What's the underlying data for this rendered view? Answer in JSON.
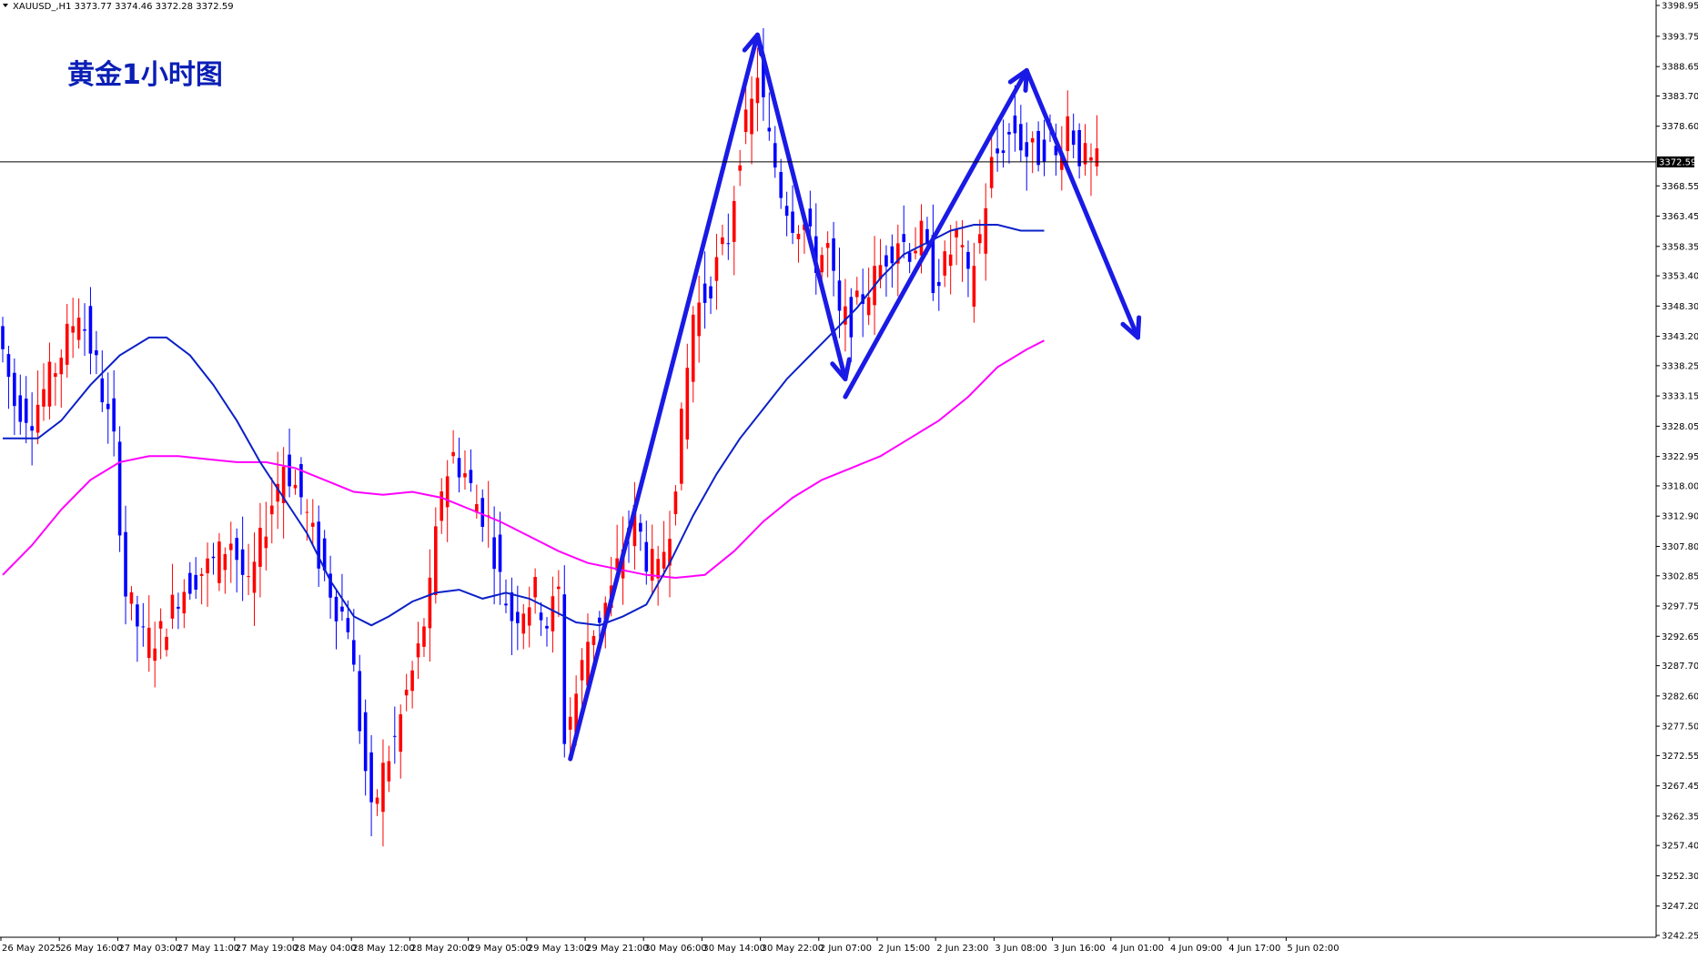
{
  "header": {
    "symbol_line": "XAUUSD_,H1  3373.77 3374.46 3372.28 3372.59",
    "chart_title": "黄金1小时图"
  },
  "colors": {
    "bull_candle": "#ff0000",
    "bear_candle": "#0000ff",
    "ma_fast": "#0b20c8",
    "ma_slow": "#ff00ff",
    "arrows": "#1a1ae6",
    "price_line": "#000000",
    "price_tag_bg": "#000000"
  },
  "chart_data": {
    "type": "candlestick",
    "timeframe": "H1",
    "ylim": [
      3242.25,
      3398.95
    ],
    "y_ticks": [
      "3398.95",
      "3393.75",
      "3388.65",
      "3383.70",
      "3378.60",
      "3368.55",
      "3363.45",
      "3358.35",
      "3353.40",
      "3348.30",
      "3343.20",
      "3338.25",
      "3333.15",
      "3328.05",
      "3322.95",
      "3318.00",
      "3312.90",
      "3307.80",
      "3302.85",
      "3297.75",
      "3292.65",
      "3287.70",
      "3282.60",
      "3277.50",
      "3272.55",
      "3267.45",
      "3262.35",
      "3257.40",
      "3252.30",
      "3247.20",
      "3242.25"
    ],
    "x_ticks": [
      "26 May 2025",
      "26 May 16:00",
      "27 May 03:00",
      "27 May 11:00",
      "27 May 19:00",
      "28 May 04:00",
      "28 May 12:00",
      "28 May 20:00",
      "29 May 05:00",
      "29 May 13:00",
      "29 May 21:00",
      "30 May 06:00",
      "30 May 14:00",
      "30 May 22:00",
      "2 Jun 07:00",
      "2 Jun 15:00",
      "2 Jun 23:00",
      "3 Jun 08:00",
      "3 Jun 16:00",
      "4 Jun 01:00",
      "4 Jun 09:00",
      "4 Jun 17:00",
      "5 Jun 02:00"
    ],
    "current_price": 3372.59,
    "current_price_label": "3372.59",
    "ma_fast_points": [
      [
        0,
        3326
      ],
      [
        6,
        3326
      ],
      [
        10,
        3329
      ],
      [
        15,
        3335
      ],
      [
        20,
        3340
      ],
      [
        25,
        3343
      ],
      [
        28,
        3343
      ],
      [
        32,
        3340
      ],
      [
        36,
        3335
      ],
      [
        40,
        3329
      ],
      [
        44,
        3322
      ],
      [
        48,
        3316
      ],
      [
        52,
        3310
      ],
      [
        56,
        3302
      ],
      [
        60,
        3296
      ],
      [
        63,
        3294.5
      ],
      [
        66,
        3296
      ],
      [
        70,
        3298.5
      ],
      [
        74,
        3300
      ],
      [
        78,
        3300.5
      ],
      [
        82,
        3299
      ],
      [
        86,
        3300
      ],
      [
        90,
        3299
      ],
      [
        94,
        3297
      ],
      [
        98,
        3295
      ],
      [
        102,
        3294.5
      ],
      [
        106,
        3296
      ],
      [
        110,
        3298
      ],
      [
        114,
        3305
      ],
      [
        118,
        3313
      ],
      [
        122,
        3320
      ],
      [
        126,
        3326
      ],
      [
        130,
        3331
      ],
      [
        134,
        3336
      ],
      [
        138,
        3340
      ],
      [
        142,
        3344
      ],
      [
        146,
        3348
      ],
      [
        150,
        3353
      ],
      [
        154,
        3357
      ],
      [
        158,
        3359
      ],
      [
        162,
        3361
      ],
      [
        166,
        3362
      ],
      [
        170,
        3362
      ],
      [
        174,
        3361
      ],
      [
        178,
        3361
      ]
    ],
    "ma_slow_points": [
      [
        0,
        3303
      ],
      [
        5,
        3308
      ],
      [
        10,
        3314
      ],
      [
        15,
        3319
      ],
      [
        20,
        3322
      ],
      [
        25,
        3323
      ],
      [
        30,
        3323
      ],
      [
        35,
        3322.5
      ],
      [
        40,
        3322
      ],
      [
        45,
        3322
      ],
      [
        50,
        3321
      ],
      [
        55,
        3319
      ],
      [
        60,
        3317
      ],
      [
        65,
        3316.5
      ],
      [
        70,
        3317
      ],
      [
        75,
        3316
      ],
      [
        80,
        3314
      ],
      [
        85,
        3312
      ],
      [
        90,
        3309.5
      ],
      [
        95,
        3307
      ],
      [
        100,
        3305
      ],
      [
        105,
        3304
      ],
      [
        110,
        3303
      ],
      [
        115,
        3302.5
      ],
      [
        120,
        3303
      ],
      [
        125,
        3307
      ],
      [
        130,
        3312
      ],
      [
        135,
        3316
      ],
      [
        140,
        3319
      ],
      [
        145,
        3321
      ],
      [
        150,
        3323
      ],
      [
        155,
        3326
      ],
      [
        160,
        3329
      ],
      [
        165,
        3333
      ],
      [
        170,
        3338
      ],
      [
        175,
        3341
      ],
      [
        178,
        3342.5
      ]
    ],
    "arrows": [
      {
        "from": [
          97,
          3272
        ],
        "to": [
          129,
          3394
        ]
      },
      {
        "from": [
          129,
          3394
        ],
        "to": [
          144,
          3336
        ]
      },
      {
        "from": [
          144,
          3333
        ],
        "to": [
          175,
          3388
        ]
      },
      {
        "from": [
          175,
          3388
        ],
        "to": [
          194,
          3343
        ]
      }
    ]
  }
}
